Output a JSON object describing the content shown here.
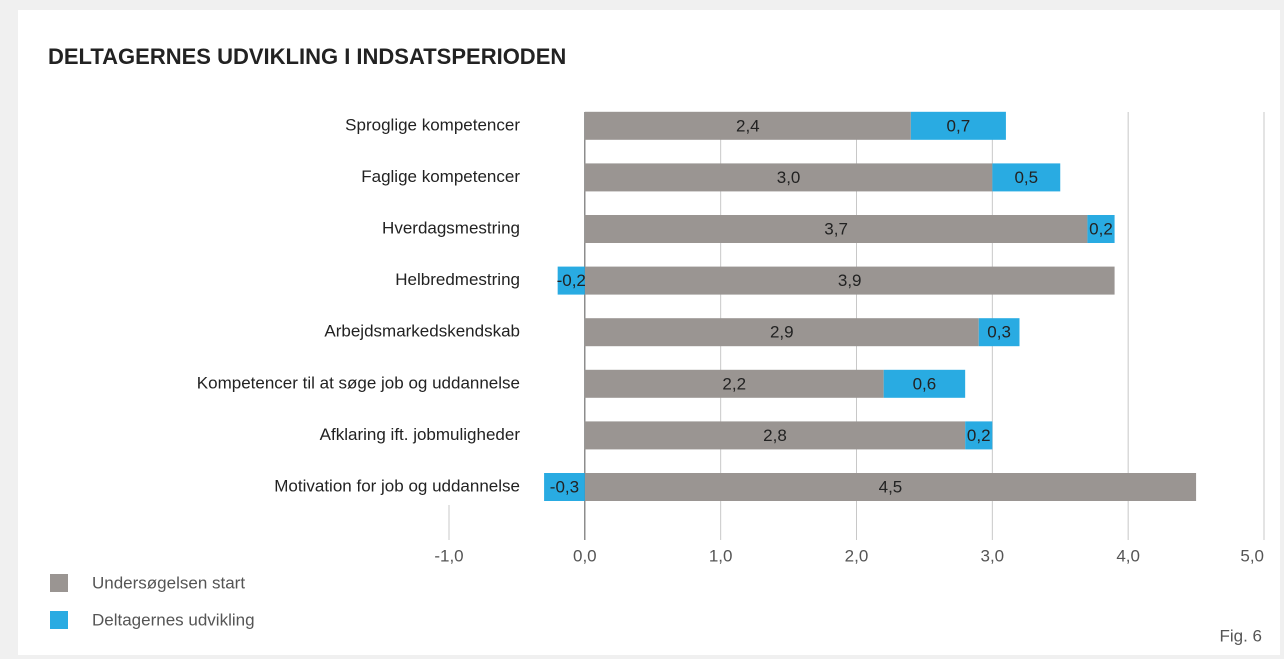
{
  "chart_data": {
    "type": "bar",
    "orientation": "horizontal",
    "stacked": true,
    "title": "DELTAGERNES UDVIKLING I INDSATSPERIODEN",
    "categories": [
      "Sproglige kompetencer",
      "Faglige kompetencer",
      "Hverdagsmestring",
      "Helbredmestring",
      "Arbejdsmarkedskendskab",
      "Kompetencer til at søge job og uddannelse",
      "Afklaring ift. jobmuligheder",
      "Motivation for job og uddannelse"
    ],
    "series": [
      {
        "name": "Undersøgelsen start",
        "color": "#9a9592",
        "values": [
          2.4,
          3.0,
          3.7,
          3.9,
          2.9,
          2.2,
          2.8,
          4.5
        ],
        "value_labels": [
          "2,4",
          "3,0",
          "3,7",
          "3,9",
          "2,9",
          "2,2",
          "2,8",
          "4,5"
        ]
      },
      {
        "name": "Deltagernes udvikling",
        "color": "#29abe2",
        "values": [
          0.7,
          0.5,
          0.2,
          -0.2,
          0.3,
          0.6,
          0.2,
          -0.3
        ],
        "value_labels": [
          "0,7",
          "0,5",
          "0,2",
          "-0,2",
          "0,3",
          "0,6",
          "0,2",
          "-0,3"
        ]
      }
    ],
    "xlim": [
      -1,
      5
    ],
    "xticks": [
      {
        "value": -1,
        "label": "-1,0"
      },
      {
        "value": 0,
        "label": "0,0"
      },
      {
        "value": 1,
        "label": "1,0"
      },
      {
        "value": 2,
        "label": "2,0"
      },
      {
        "value": 3,
        "label": "3,0"
      },
      {
        "value": 4,
        "label": "4,0"
      },
      {
        "value": 5,
        "label": "5,0"
      }
    ],
    "grid": true,
    "note": "Fig. 6"
  }
}
